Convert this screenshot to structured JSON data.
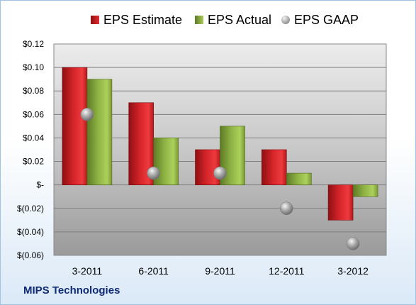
{
  "footer": {
    "company": "MIPS Technologies"
  },
  "legend": {
    "items": [
      {
        "label": "EPS Estimate",
        "color": "#c81e22",
        "icon": "square"
      },
      {
        "label": "EPS Actual",
        "color": "#86a83d",
        "icon": "square"
      },
      {
        "label": "EPS GAAP",
        "color": "#9a9a9a",
        "icon": "sphere"
      }
    ]
  },
  "chart_data": {
    "type": "bar",
    "title": "",
    "xlabel": "",
    "ylabel": "",
    "categories": [
      "3-2011",
      "6-2011",
      "9-2011",
      "12-2011",
      "3-2012"
    ],
    "series": [
      {
        "name": "EPS Estimate",
        "type": "bar",
        "color": "#c81e22",
        "values": [
          0.1,
          0.07,
          0.03,
          0.03,
          -0.03
        ]
      },
      {
        "name": "EPS Actual",
        "type": "bar",
        "color": "#86a83d",
        "values": [
          0.09,
          0.04,
          0.05,
          0.01,
          -0.01
        ]
      },
      {
        "name": "EPS GAAP",
        "type": "scatter",
        "color": "#9a9a9a",
        "values": [
          0.06,
          0.01,
          0.01,
          -0.02,
          -0.05
        ]
      }
    ],
    "ylim": [
      -0.06,
      0.12
    ],
    "yticks": [
      0.12,
      0.1,
      0.08,
      0.06,
      0.04,
      0.02,
      0,
      -0.02,
      -0.04,
      -0.06
    ],
    "ytick_labels": [
      "$0.12",
      "$0.10",
      "$0.08",
      "$0.06",
      "$0.04",
      "$0.02",
      "$-",
      "$(0.02)",
      "$(0.04)",
      "$(0.06)"
    ],
    "grid": true,
    "legend_position": "top"
  }
}
